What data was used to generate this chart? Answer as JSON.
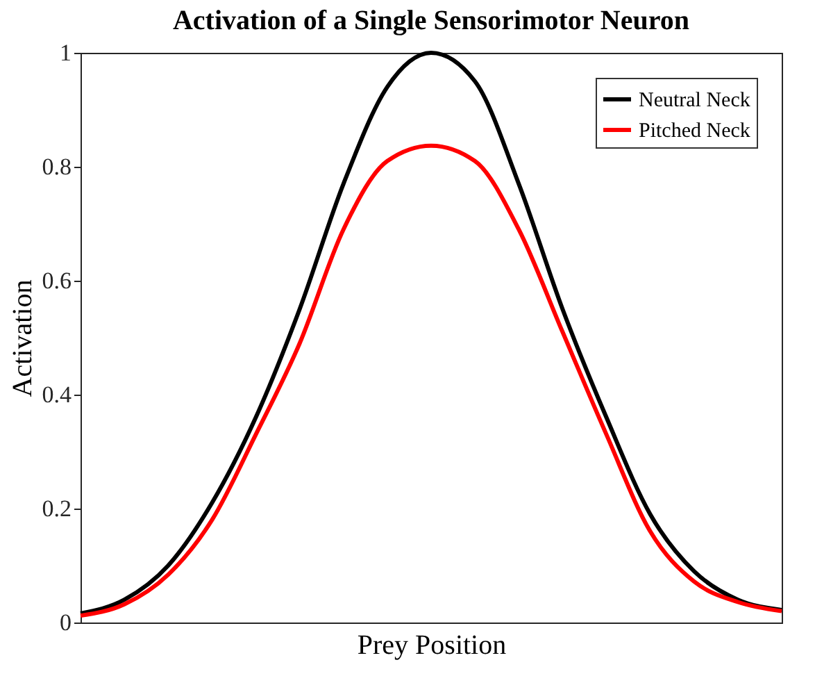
{
  "chart_data": {
    "type": "line",
    "title": "Activation of a Single Sensorimotor Neuron",
    "xlabel": "Prey Position",
    "ylabel": "Activation",
    "categories": [
      null,
      null,
      null,
      null,
      null,
      null,
      null,
      null,
      null,
      null,
      null,
      null,
      null,
      null,
      null,
      null,
      null
    ],
    "series": [
      {
        "name": "Neutral Neck",
        "color": "#000000",
        "values": [
          0.016,
          0.04,
          0.1,
          0.21,
          0.36,
          0.55,
          0.77,
          0.94,
          1.0,
          0.95,
          0.77,
          0.55,
          0.36,
          0.19,
          0.09,
          0.04,
          0.022
        ]
      },
      {
        "name": "Pitched Neck",
        "color": "#ff0000",
        "values": [
          0.012,
          0.032,
          0.084,
          0.18,
          0.33,
          0.49,
          0.69,
          0.81,
          0.837,
          0.81,
          0.69,
          0.51,
          0.33,
          0.16,
          0.072,
          0.036,
          0.02
        ]
      }
    ],
    "ylim": [
      0,
      1
    ],
    "yticks": [
      0,
      0.2,
      0.4,
      0.6,
      0.8,
      1
    ],
    "grid": false,
    "legend": "top right",
    "line_style": "solid",
    "marker": "none"
  }
}
